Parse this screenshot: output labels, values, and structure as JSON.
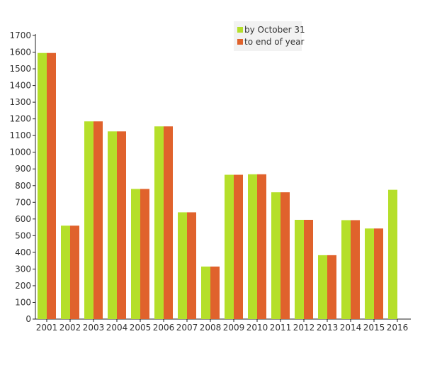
{
  "chart_data": {
    "type": "bar",
    "title": "",
    "xlabel": "",
    "ylabel": "",
    "ylim": [
      0,
      1700
    ],
    "ytick_step": 100,
    "grid": false,
    "legend_position": "top-right",
    "categories": [
      "2001",
      "2002",
      "2003",
      "2004",
      "2005",
      "2006",
      "2007",
      "2008",
      "2009",
      "2010",
      "2011",
      "2012",
      "2013",
      "2014",
      "2015",
      "2016"
    ],
    "series": [
      {
        "name": "by October 31",
        "color": "#b5df2a",
        "values": [
          1595,
          560,
          1185,
          1125,
          780,
          1155,
          640,
          315,
          865,
          868,
          760,
          595,
          383,
          593,
          543,
          775
        ]
      },
      {
        "name": "to end of year",
        "color": "#e0622c",
        "values": [
          1595,
          560,
          1185,
          1125,
          780,
          1155,
          640,
          315,
          865,
          868,
          760,
          595,
          383,
          593,
          543,
          0
        ]
      }
    ]
  }
}
